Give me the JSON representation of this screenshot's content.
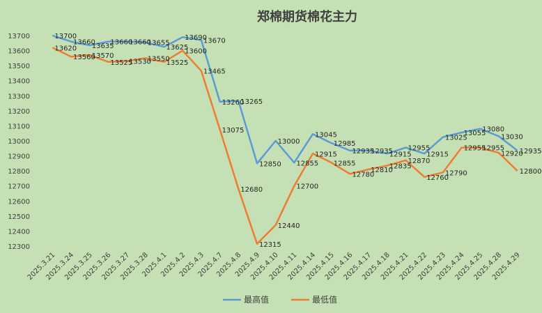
{
  "chart_data": {
    "type": "line",
    "title": "郑棉期货棉花主力",
    "xlabel": "",
    "ylabel": "",
    "ylim": [
      12300,
      13700
    ],
    "ytick_step": 100,
    "grid": false,
    "legend": "bottom",
    "categories": [
      "2025.3.21",
      "2025.3.24",
      "2025.3.25",
      "2025.3.26",
      "2025.3.27",
      "2025.3.28",
      "2025.4.1",
      "2025.4.2",
      "2025.4.3",
      "2025.4.7",
      "2025.4.8",
      "2025.4.9",
      "2025.4.10",
      "2025.4.11",
      "2025.4.14",
      "2025.4.15",
      "2025.4.16",
      "2025.4.17",
      "2025.4.18",
      "2025.4.21",
      "2025.4.22",
      "2025.4.23",
      "2025.4.24",
      "2025.4.25",
      "2025.4.28",
      "2025.4.29"
    ],
    "series": [
      {
        "name": "最高值",
        "color": "#5b9bd5",
        "values": [
          13700,
          13660,
          13635,
          13660,
          13660,
          13655,
          13625,
          13690,
          13670,
          13260,
          13265,
          12850,
          13000,
          12855,
          13045,
          12985,
          12935,
          12935,
          12915,
          12955,
          12915,
          13025,
          13055,
          13080,
          13030,
          12935
        ]
      },
      {
        "name": "最低值",
        "color": "#ed7d31",
        "values": [
          13620,
          13560,
          13570,
          13525,
          13530,
          13550,
          13525,
          13600,
          13465,
          13075,
          12680,
          12315,
          12440,
          12700,
          12915,
          12855,
          12780,
          12810,
          12835,
          12870,
          12760,
          12790,
          12955,
          12955,
          12920,
          12800
        ]
      }
    ]
  }
}
